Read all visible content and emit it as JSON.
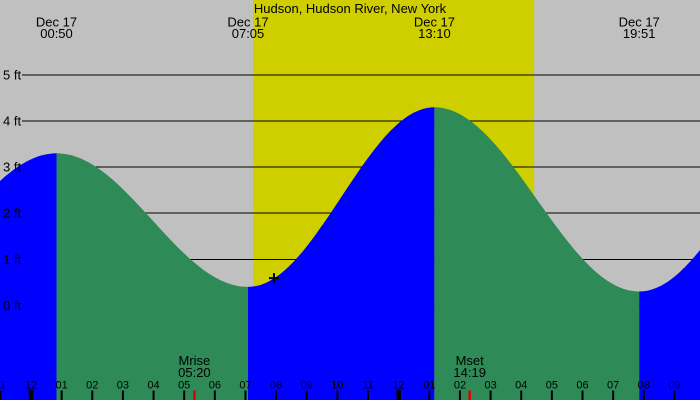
{
  "chart_data": {
    "type": "area",
    "title": "Hudson, Hudson River, New York",
    "y_axis": {
      "unit": "ft",
      "range": [
        0,
        5
      ],
      "ticks": [
        {
          "value": 5,
          "label": "5 ft"
        },
        {
          "value": 4,
          "label": "4 ft"
        },
        {
          "value": 3,
          "label": "3 ft"
        },
        {
          "value": 2,
          "label": "2 ft"
        },
        {
          "value": 1,
          "label": "1 ft"
        },
        {
          "value": 0,
          "label": "0 ft"
        }
      ]
    },
    "x_axis": {
      "unit": "hour",
      "ticks": [
        {
          "t": -1,
          "label": "11",
          "major": false
        },
        {
          "t": 0,
          "label": "12",
          "major": true
        },
        {
          "t": 1,
          "label": "01",
          "major": false
        },
        {
          "t": 2,
          "label": "02",
          "major": false
        },
        {
          "t": 3,
          "label": "03",
          "major": false
        },
        {
          "t": 4,
          "label": "04",
          "major": false
        },
        {
          "t": 5,
          "label": "05",
          "major": false
        },
        {
          "t": 6,
          "label": "06",
          "major": false
        },
        {
          "t": 7,
          "label": "07",
          "major": false
        },
        {
          "t": 8,
          "label": "08",
          "major": false
        },
        {
          "t": 9,
          "label": "09",
          "major": false
        },
        {
          "t": 10,
          "label": "10",
          "major": false
        },
        {
          "t": 11,
          "label": "11",
          "major": false
        },
        {
          "t": 12,
          "label": "12",
          "major": true
        },
        {
          "t": 13,
          "label": "01",
          "major": false
        },
        {
          "t": 14,
          "label": "02",
          "major": false
        },
        {
          "t": 15,
          "label": "03",
          "major": false
        },
        {
          "t": 16,
          "label": "04",
          "major": false
        },
        {
          "t": 17,
          "label": "05",
          "major": false
        },
        {
          "t": 18,
          "label": "06",
          "major": false
        },
        {
          "t": 19,
          "label": "07",
          "major": false
        },
        {
          "t": 20,
          "label": "08",
          "major": false
        },
        {
          "t": 21,
          "label": "09",
          "major": false
        }
      ]
    },
    "tide_extremes": [
      {
        "date": "Dec 17",
        "time": "00:50",
        "t": 0.833,
        "height_ft": 3.3,
        "type": "high"
      },
      {
        "date": "Dec 17",
        "time": "07:05",
        "t": 7.083,
        "height_ft": 0.4,
        "type": "low"
      },
      {
        "date": "Dec 17",
        "time": "13:10",
        "t": 13.167,
        "height_ft": 4.3,
        "type": "high"
      },
      {
        "date": "Dec 17",
        "time": "19:51",
        "t": 19.85,
        "height_ft": 0.3,
        "type": "low"
      }
    ],
    "curve_anchors": [
      {
        "t": -5.42,
        "h": 0.3,
        "offscreen": true
      },
      {
        "t": 0.833,
        "h": 3.3
      },
      {
        "t": 7.083,
        "h": 0.4
      },
      {
        "t": 13.167,
        "h": 4.3
      },
      {
        "t": 19.85,
        "h": 0.3
      },
      {
        "t": 25.8,
        "h": 3.9,
        "offscreen": true
      }
    ],
    "daylight_band": {
      "t_start": 7.245,
      "t_end": 16.423
    },
    "moon_events": [
      {
        "label": "Mrise",
        "time": "05:20",
        "t": 5.333
      },
      {
        "label": "Mset",
        "time": "14:19",
        "t": 14.317
      }
    ],
    "marker_plus": {
      "t": 7.93,
      "height_ft": 0.59
    },
    "legend_position": "none",
    "grid": true,
    "colors": {
      "night_bg": "#c0c0c0",
      "day_bg": "#cfcf00",
      "rising_fill": "#0000ff",
      "falling_fill": "#2e8b57",
      "grid": "#000000",
      "text": "#000000",
      "moon_tick": "#dd0000",
      "marker": "#000000"
    }
  }
}
